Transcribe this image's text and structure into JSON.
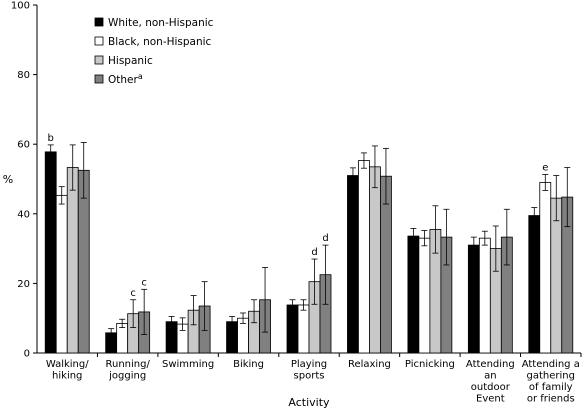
{
  "chart_data": {
    "type": "bar",
    "title": "",
    "xlabel": "Activity",
    "ylabel": "%",
    "ylim": [
      0,
      100
    ],
    "yticks": [
      0,
      20,
      40,
      60,
      80,
      100
    ],
    "grid": false,
    "legend_position": "top-left",
    "categories": [
      [
        "Walking/",
        "hiking"
      ],
      [
        "Running/",
        "jogging"
      ],
      [
        "Swimming"
      ],
      [
        "Biking"
      ],
      [
        "Playing",
        "sports"
      ],
      [
        "Relaxing"
      ],
      [
        "Picnicking"
      ],
      [
        "Attending",
        "an",
        "outdoor",
        "Event"
      ],
      [
        "Attending a",
        "gathering",
        "of family",
        "or friends"
      ]
    ],
    "series": [
      {
        "name": "White, non-Hispanic",
        "sup": "",
        "color": "#000000",
        "values": [
          57.8,
          5.8,
          9.0,
          9.0,
          13.8,
          51.0,
          33.6,
          31.0,
          39.5
        ],
        "err": [
          2.0,
          1.2,
          1.5,
          1.5,
          1.5,
          2.2,
          2.2,
          2.3,
          2.3
        ],
        "annotations": [
          "b",
          "",
          "",
          "",
          "",
          "",
          "",
          "",
          ""
        ]
      },
      {
        "name": "Black, non-Hispanic",
        "sup": "",
        "color": "#ffffff",
        "values": [
          45.3,
          8.5,
          8.3,
          10.0,
          13.8,
          55.3,
          33.0,
          33.0,
          49.0
        ],
        "err": [
          2.5,
          1.2,
          1.8,
          1.5,
          1.5,
          2.2,
          2.2,
          2.0,
          2.3
        ],
        "annotations": [
          "",
          "",
          "",
          "",
          "",
          "",
          "",
          "",
          "e"
        ]
      },
      {
        "name": "Hispanic",
        "sup": "",
        "color": "#c8c8c8",
        "values": [
          53.3,
          11.3,
          12.3,
          12.0,
          20.5,
          53.5,
          35.5,
          30.0,
          44.5
        ],
        "err": [
          6.5,
          4.0,
          4.2,
          3.3,
          6.5,
          6.0,
          6.8,
          6.5,
          6.5
        ],
        "annotations": [
          "",
          "c",
          "",
          "",
          "d",
          "",
          "",
          "",
          ""
        ]
      },
      {
        "name": "Other",
        "sup": "a",
        "color": "#808080",
        "values": [
          52.5,
          11.8,
          13.5,
          15.3,
          22.5,
          50.8,
          33.3,
          33.3,
          44.8
        ],
        "err": [
          8.0,
          6.5,
          7.0,
          9.3,
          8.5,
          8.0,
          8.0,
          8.0,
          8.5
        ],
        "annotations": [
          "",
          "c",
          "",
          "",
          "d",
          "",
          "",
          "",
          ""
        ]
      }
    ]
  }
}
